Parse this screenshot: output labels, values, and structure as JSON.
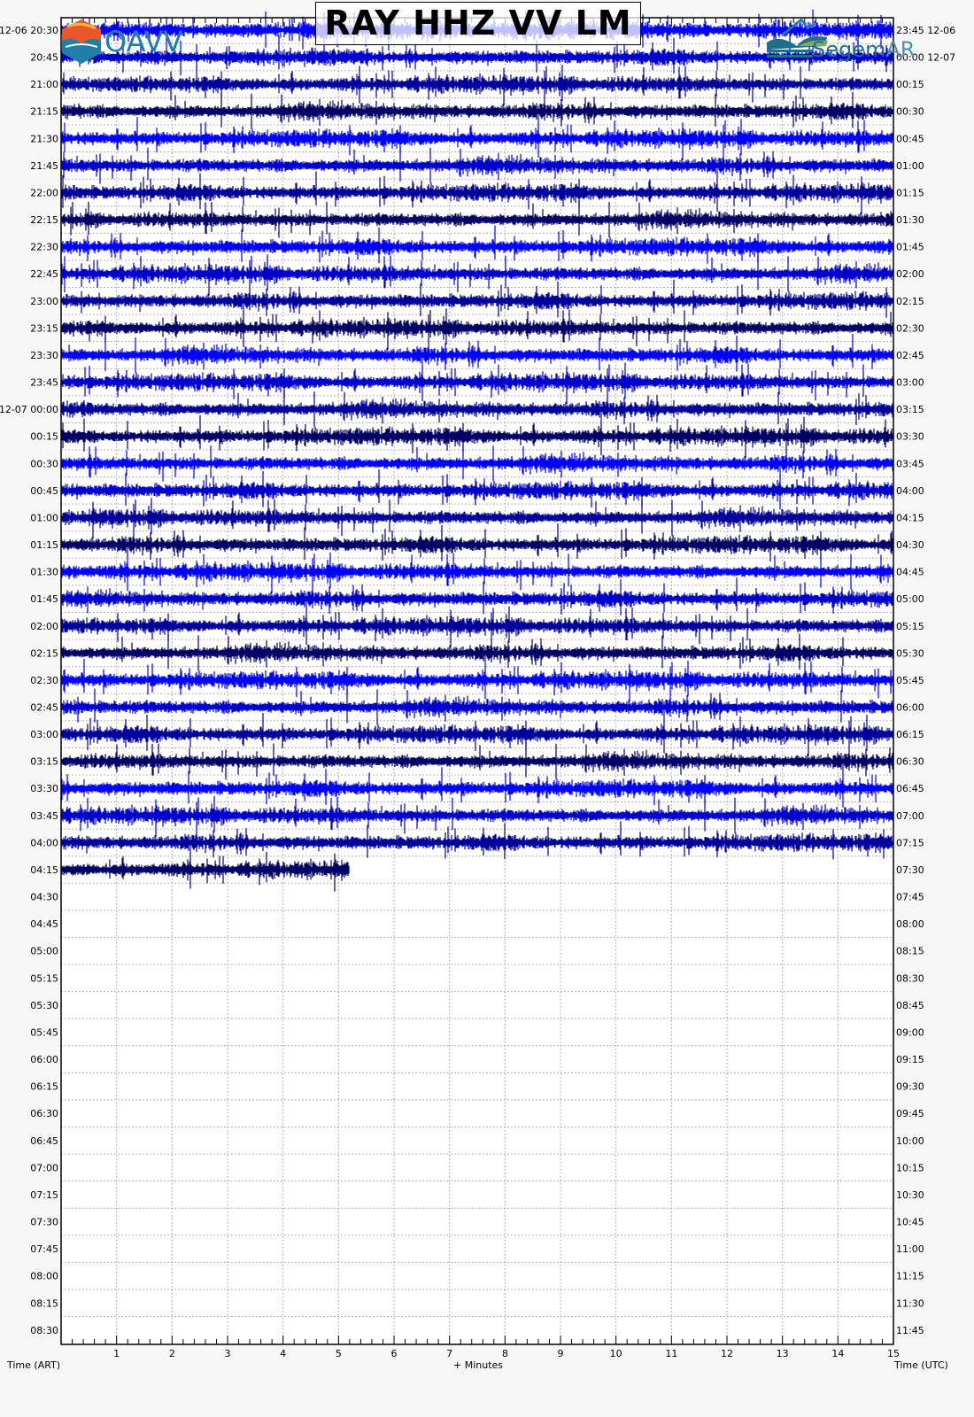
{
  "chart_data": {
    "type": "helicorder",
    "title": "RAY HHZ VV LM",
    "xlabel": "+ Minutes",
    "xlim": [
      0,
      15
    ],
    "xticks": [
      "1",
      "2",
      "3",
      "4",
      "5",
      "6",
      "7",
      "8",
      "9",
      "10",
      "11",
      "12",
      "13",
      "14",
      "15"
    ],
    "left_axis_label": "Time (ART)",
    "right_axis_label": "Time (UTC)",
    "row_minutes": 15,
    "left_row_labels": [
      "12-06 20:30",
      "20:45",
      "21:00",
      "21:15",
      "21:30",
      "21:45",
      "22:00",
      "22:15",
      "22:30",
      "22:45",
      "23:00",
      "23:15",
      "23:30",
      "23:45",
      "12-07 00:00",
      "00:15",
      "00:30",
      "00:45",
      "01:00",
      "01:15",
      "01:30",
      "01:45",
      "02:00",
      "02:15",
      "02:30",
      "02:45",
      "03:00",
      "03:15",
      "03:30",
      "03:45",
      "04:00",
      "04:15",
      "04:30",
      "04:45",
      "05:00",
      "05:15",
      "05:30",
      "05:45",
      "06:00",
      "06:15",
      "06:30",
      "06:45",
      "07:00",
      "07:15",
      "07:30",
      "07:45",
      "08:00",
      "08:15",
      "08:30"
    ],
    "right_row_labels": [
      "23:45 12-06",
      "00:00 12-07",
      "00:15",
      "00:30",
      "00:45",
      "01:00",
      "01:15",
      "01:30",
      "01:45",
      "02:00",
      "02:15",
      "02:30",
      "02:45",
      "03:00",
      "03:15",
      "03:30",
      "03:45",
      "04:00",
      "04:15",
      "04:30",
      "04:45",
      "05:00",
      "05:15",
      "05:30",
      "05:45",
      "06:00",
      "06:15",
      "06:30",
      "06:45",
      "07:00",
      "07:15",
      "07:30",
      "07:45",
      "08:00",
      "08:15",
      "08:30",
      "08:45",
      "09:00",
      "09:15",
      "09:30",
      "09:45",
      "10:00",
      "10:15",
      "10:30",
      "10:45",
      "11:00",
      "11:15",
      "11:30",
      "11:45"
    ],
    "rows_with_data": 32,
    "last_row_data_minutes": 5.2,
    "trace_colors": [
      "#0000ff",
      "#0000cc",
      "#00009a",
      "#000066"
    ],
    "grid": true
  },
  "logos": {
    "left": "OAVV",
    "right": "SegemAR"
  }
}
